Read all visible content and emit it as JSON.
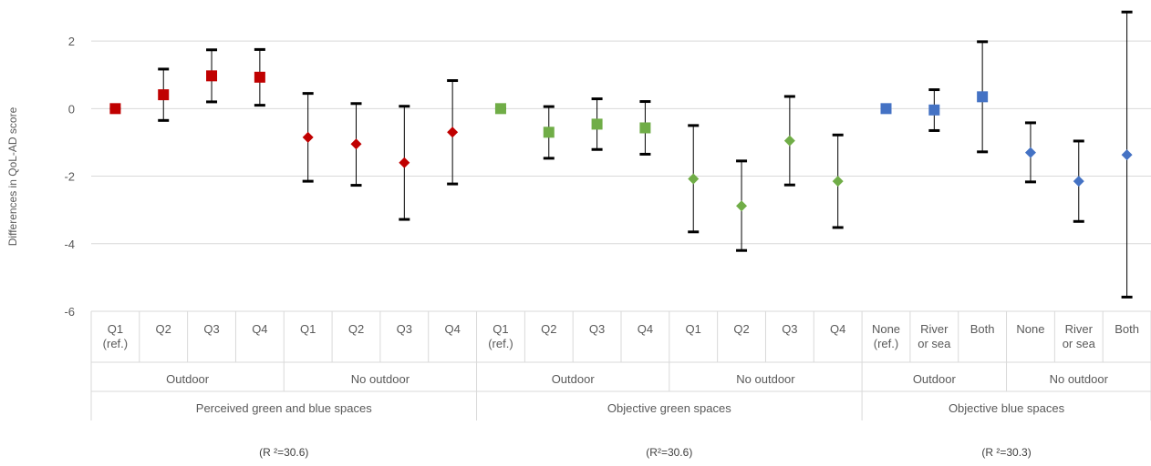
{
  "chart_data": {
    "type": "scatter",
    "ylabel": "Differences in QoL-AD score",
    "ylim": [
      -6,
      3
    ],
    "yticks": [
      -6,
      -4,
      -2,
      0,
      2
    ],
    "grid": "horizontal",
    "legend": "none",
    "panels": [
      {
        "name": "Perceived green and blue spaces",
        "r2_label": "(R ²=30.6)",
        "color": "#C00000",
        "groups": [
          {
            "name": "Outdoor",
            "points": [
              {
                "label": "Q1 (ref.)",
                "lines": [
                  "Q1",
                  "(ref.)"
                ],
                "marker": "square",
                "value": 0,
                "lower": 0,
                "upper": 0
              },
              {
                "label": "Q2",
                "lines": [
                  "Q2"
                ],
                "marker": "square",
                "value": 0.41,
                "lower": -0.35,
                "upper": 1.17
              },
              {
                "label": "Q3",
                "lines": [
                  "Q3"
                ],
                "marker": "square",
                "value": 0.97,
                "lower": 0.2,
                "upper": 1.74
              },
              {
                "label": "Q4",
                "lines": [
                  "Q4"
                ],
                "marker": "square",
                "value": 0.93,
                "lower": 0.1,
                "upper": 1.75
              }
            ]
          },
          {
            "name": "No outdoor",
            "points": [
              {
                "label": "Q1",
                "lines": [
                  "Q1"
                ],
                "marker": "diamond",
                "value": -0.85,
                "lower": -2.15,
                "upper": 0.45
              },
              {
                "label": "Q2",
                "lines": [
                  "Q2"
                ],
                "marker": "diamond",
                "value": -1.05,
                "lower": -2.27,
                "upper": 0.15
              },
              {
                "label": "Q3",
                "lines": [
                  "Q3"
                ],
                "marker": "diamond",
                "value": -1.6,
                "lower": -3.28,
                "upper": 0.07
              },
              {
                "label": "Q4",
                "lines": [
                  "Q4"
                ],
                "marker": "diamond",
                "value": -0.7,
                "lower": -2.23,
                "upper": 0.83
              }
            ]
          }
        ]
      },
      {
        "name": "Objective green spaces",
        "r2_label": "(R²=30.6)",
        "color": "#70AD47",
        "groups": [
          {
            "name": "Outdoor",
            "points": [
              {
                "label": "Q1 (ref.)",
                "lines": [
                  "Q1",
                  "(ref.)"
                ],
                "marker": "square",
                "value": 0,
                "lower": 0,
                "upper": 0
              },
              {
                "label": "Q2",
                "lines": [
                  "Q2"
                ],
                "marker": "square",
                "value": -0.7,
                "lower": -1.47,
                "upper": 0.06
              },
              {
                "label": "Q3",
                "lines": [
                  "Q3"
                ],
                "marker": "square",
                "value": -0.46,
                "lower": -1.21,
                "upper": 0.29
              },
              {
                "label": "Q4",
                "lines": [
                  "Q4"
                ],
                "marker": "square",
                "value": -0.57,
                "lower": -1.35,
                "upper": 0.21
              }
            ]
          },
          {
            "name": "No outdoor",
            "points": [
              {
                "label": "Q1",
                "lines": [
                  "Q1"
                ],
                "marker": "diamond",
                "value": -2.08,
                "lower": -3.65,
                "upper": -0.5
              },
              {
                "label": "Q2",
                "lines": [
                  "Q2"
                ],
                "marker": "diamond",
                "value": -2.88,
                "lower": -4.2,
                "upper": -1.55
              },
              {
                "label": "Q3",
                "lines": [
                  "Q3"
                ],
                "marker": "diamond",
                "value": -0.95,
                "lower": -2.26,
                "upper": 0.36
              },
              {
                "label": "Q4",
                "lines": [
                  "Q4"
                ],
                "marker": "diamond",
                "value": -2.15,
                "lower": -3.52,
                "upper": -0.78
              }
            ]
          }
        ]
      },
      {
        "name": "Objective blue spaces",
        "r2_label": "(R ²=30.3)",
        "color": "#4472C4",
        "groups": [
          {
            "name": "Outdoor",
            "points": [
              {
                "label": "None (ref.)",
                "lines": [
                  "None",
                  "(ref.)"
                ],
                "marker": "square",
                "value": 0,
                "lower": 0,
                "upper": 0
              },
              {
                "label": "River or sea",
                "lines": [
                  "River",
                  "or sea"
                ],
                "marker": "square",
                "value": -0.04,
                "lower": -0.65,
                "upper": 0.56
              },
              {
                "label": "Both",
                "lines": [
                  "Both"
                ],
                "marker": "square",
                "value": 0.35,
                "lower": -1.28,
                "upper": 1.98
              }
            ]
          },
          {
            "name": "No outdoor",
            "points": [
              {
                "label": "None",
                "lines": [
                  "None"
                ],
                "marker": "diamond",
                "value": -1.3,
                "lower": -2.17,
                "upper": -0.42
              },
              {
                "label": "River or sea",
                "lines": [
                  "River",
                  "or sea"
                ],
                "marker": "diamond",
                "value": -2.15,
                "lower": -3.34,
                "upper": -0.96
              },
              {
                "label": "Both",
                "lines": [
                  "Both"
                ],
                "marker": "diamond",
                "value": -1.37,
                "lower": -5.58,
                "upper": 2.86
              }
            ]
          }
        ]
      }
    ]
  }
}
